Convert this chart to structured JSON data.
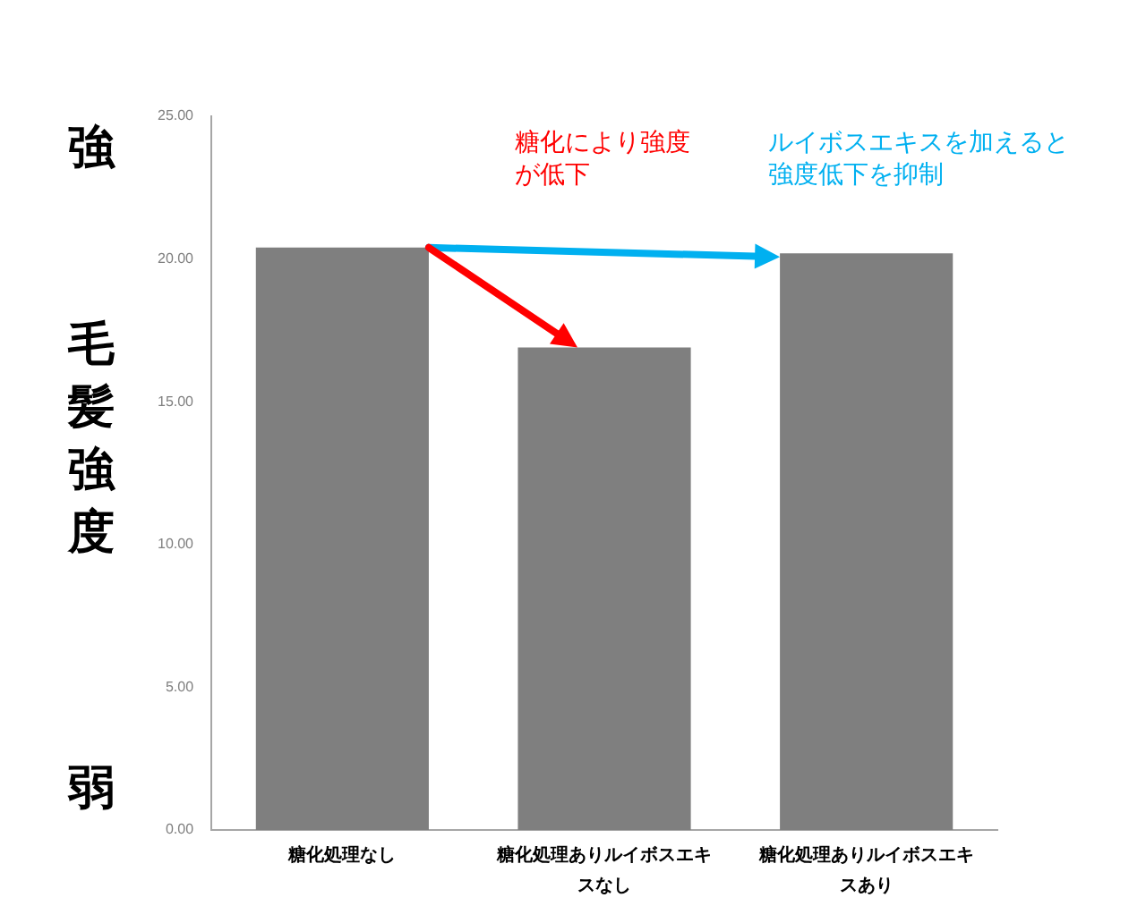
{
  "chart_data": {
    "type": "bar",
    "ylabel": "毛髪強度",
    "categories": [
      "糖化処理なし",
      "糖化処理ありルイボスエキスなし",
      "糖化処理ありルイボスエキスあり"
    ],
    "values": [
      20.4,
      16.9,
      20.2
    ],
    "color": "#7f7f7f",
    "ylim": [
      0,
      25
    ],
    "yticks": [
      {
        "value": 0,
        "label": "0.00"
      },
      {
        "value": 5,
        "label": "5.00"
      },
      {
        "value": 10,
        "label": "10.00"
      },
      {
        "value": 15,
        "label": "15.00"
      },
      {
        "value": 20,
        "label": "20.00"
      },
      {
        "value": 25,
        "label": "25.00"
      }
    ],
    "grid": false,
    "legend": false,
    "annotations": [
      "強",
      "弱",
      "糖化により強度が低下",
      "ルイボスエキスを加えると強度低下を抑制"
    ]
  }
}
